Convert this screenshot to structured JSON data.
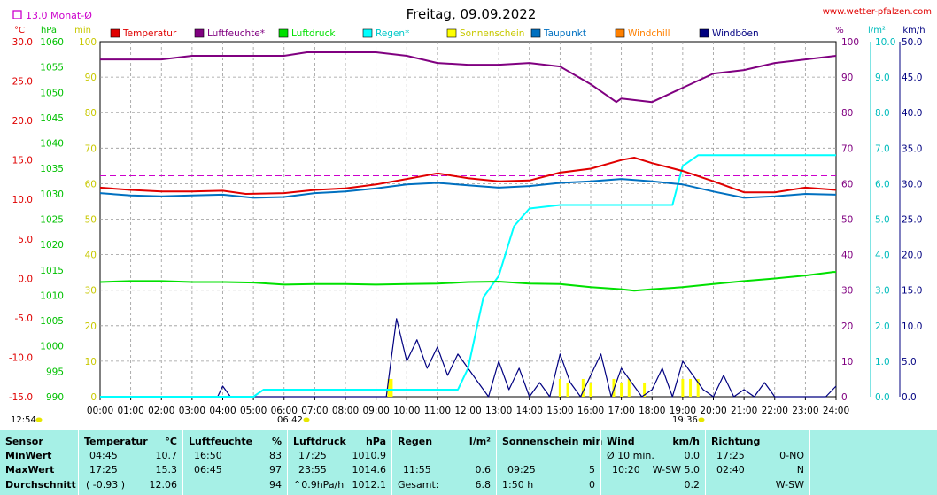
{
  "header": {
    "title": "Freitag, 09.09.2022",
    "site": "www.wetter-pfalzen.com",
    "month_marker": "13.0 Monat-Ø"
  },
  "axes": {
    "temp": {
      "unit": "°C",
      "ticks": [
        "30.0",
        "25.0",
        "20.0",
        "15.0",
        "10.0",
        "5.0",
        "0.0",
        "-5.0",
        "-10.0",
        "-15.0"
      ]
    },
    "pressure": {
      "unit": "hPa",
      "ticks": [
        "1060",
        "1055",
        "1050",
        "1045",
        "1040",
        "1035",
        "1030",
        "1025",
        "1020",
        "1015",
        "1010",
        "1005",
        "1000",
        "995",
        "990"
      ]
    },
    "sun": {
      "unit": "min",
      "ticks": [
        "100",
        "90",
        "80",
        "70",
        "60",
        "50",
        "40",
        "30",
        "20",
        "10",
        "0"
      ]
    },
    "humidity": {
      "unit": "%",
      "ticks": [
        "100",
        "90",
        "80",
        "70",
        "60",
        "50",
        "40",
        "30",
        "20",
        "10",
        "0"
      ]
    },
    "rain": {
      "unit": "l/m²",
      "ticks": [
        "10.0",
        "9.0",
        "8.0",
        "7.0",
        "6.0",
        "5.0",
        "4.0",
        "3.0",
        "2.0",
        "1.0",
        "0.0"
      ]
    },
    "wind": {
      "unit": "km/h",
      "ticks": [
        "50.0",
        "45.0",
        "40.0",
        "35.0",
        "30.0",
        "25.0",
        "20.0",
        "15.0",
        "10.0",
        "5.0",
        "0.0"
      ]
    },
    "x_ticks": [
      "00:00",
      "01:00",
      "02:00",
      "03:00",
      "04:00",
      "05:00",
      "06:00",
      "07:00",
      "08:00",
      "09:00",
      "10:00",
      "11:00",
      "12:00",
      "13:00",
      "14:00",
      "15:00",
      "16:00",
      "17:00",
      "18:00",
      "19:00",
      "20:00",
      "21:00",
      "22:00",
      "23:00",
      "24:00"
    ]
  },
  "legend": [
    {
      "label": "Temperatur",
      "color": "#e00000"
    },
    {
      "label": "Luftfeuchte*",
      "color": "#800080"
    },
    {
      "label": "Luftdruck",
      "color": "#00e000"
    },
    {
      "label": "Regen*",
      "color": "#00ffff"
    },
    {
      "label": "Sonnenschein",
      "color": "#ffff00"
    },
    {
      "label": "Taupunkt",
      "color": "#0070c0"
    },
    {
      "label": "Windchill",
      "color": "#ff8000"
    },
    {
      "label": "Windböen",
      "color": "#000080"
    }
  ],
  "sun_times": {
    "rise": "06:42",
    "set": "19:36",
    "moonrise": "12:54"
  },
  "chart_data": {
    "type": "line",
    "x_range": [
      "00:00",
      "24:00"
    ],
    "reference_lines": [
      {
        "name": "13.0 Monat-Ø",
        "axis": "temp",
        "value": 13.0
      }
    ],
    "series": [
      {
        "name": "Temperatur",
        "axis": "temp",
        "unit": "°C",
        "x": [
          "00:00",
          "01:00",
          "02:00",
          "03:00",
          "04:00",
          "04:45",
          "06:00",
          "07:00",
          "08:00",
          "09:00",
          "10:00",
          "11:00",
          "12:00",
          "13:00",
          "14:00",
          "15:00",
          "16:00",
          "17:00",
          "17:25",
          "18:00",
          "19:00",
          "20:00",
          "21:00",
          "22:00",
          "23:00",
          "24:00"
        ],
        "y": [
          11.5,
          11.2,
          11.0,
          11.0,
          11.1,
          10.7,
          10.8,
          11.2,
          11.4,
          11.9,
          12.6,
          13.3,
          12.7,
          12.3,
          12.4,
          13.4,
          13.9,
          15.0,
          15.3,
          14.6,
          13.6,
          12.3,
          10.9,
          10.9,
          11.5,
          11.2
        ]
      },
      {
        "name": "Taupunkt",
        "axis": "temp",
        "unit": "°C",
        "x": [
          "00:00",
          "01:00",
          "02:00",
          "03:00",
          "04:00",
          "05:00",
          "06:00",
          "07:00",
          "08:00",
          "09:00",
          "10:00",
          "11:00",
          "12:00",
          "13:00",
          "14:00",
          "15:00",
          "16:00",
          "17:00",
          "18:00",
          "19:00",
          "20:00",
          "21:00",
          "22:00",
          "23:00",
          "24:00"
        ],
        "y": [
          10.8,
          10.5,
          10.4,
          10.5,
          10.6,
          10.2,
          10.3,
          10.8,
          11.0,
          11.4,
          11.9,
          12.1,
          11.8,
          11.5,
          11.7,
          12.1,
          12.3,
          12.6,
          12.3,
          11.9,
          11.0,
          10.2,
          10.4,
          10.7,
          10.6
        ]
      },
      {
        "name": "Luftfeuchte*",
        "axis": "humidity",
        "unit": "%",
        "x": [
          "00:00",
          "02:00",
          "03:00",
          "04:00",
          "05:00",
          "06:00",
          "06:45",
          "07:00",
          "08:00",
          "09:00",
          "10:00",
          "11:00",
          "12:00",
          "13:00",
          "14:00",
          "15:00",
          "16:00",
          "16:50",
          "17:00",
          "18:00",
          "19:00",
          "20:00",
          "21:00",
          "22:00",
          "23:00",
          "24:00"
        ],
        "y": [
          95,
          95,
          96,
          96,
          96,
          96,
          97,
          97,
          97,
          97,
          96,
          94,
          93.5,
          93.5,
          94,
          93,
          88,
          83,
          84,
          83,
          87,
          91,
          92,
          94,
          95,
          96
        ]
      },
      {
        "name": "Luftdruck",
        "axis": "pressure",
        "unit": "hPa",
        "x": [
          "00:00",
          "01:00",
          "02:00",
          "03:00",
          "04:00",
          "05:00",
          "06:00",
          "07:00",
          "08:00",
          "09:00",
          "10:00",
          "11:00",
          "12:00",
          "13:00",
          "14:00",
          "15:00",
          "16:00",
          "17:00",
          "17:25",
          "18:00",
          "19:00",
          "20:00",
          "21:00",
          "22:00",
          "23:00",
          "23:55",
          "24:00"
        ],
        "y": [
          1012.6,
          1012.8,
          1012.8,
          1012.6,
          1012.6,
          1012.5,
          1012.1,
          1012.2,
          1012.2,
          1012.1,
          1012.2,
          1012.3,
          1012.6,
          1012.7,
          1012.3,
          1012.2,
          1011.6,
          1011.2,
          1010.9,
          1011.2,
          1011.6,
          1012.2,
          1012.8,
          1013.3,
          1013.9,
          1014.6,
          1014.6
        ]
      },
      {
        "name": "Regen*",
        "axis": "rain",
        "unit": "l/m²",
        "x": [
          "00:00",
          "05:00",
          "05:20",
          "06:00",
          "09:00",
          "11:40",
          "12:00",
          "12:30",
          "13:00",
          "13:30",
          "14:00",
          "15:00",
          "16:00",
          "18:00",
          "18:40",
          "19:00",
          "19:30",
          "20:00",
          "22:00",
          "24:00"
        ],
        "y": [
          0.0,
          0.0,
          0.2,
          0.2,
          0.2,
          0.2,
          0.8,
          2.8,
          3.4,
          4.8,
          5.3,
          5.4,
          5.4,
          5.4,
          5.4,
          6.5,
          6.8,
          6.8,
          6.8,
          6.8
        ]
      },
      {
        "name": "Windböen",
        "axis": "wind",
        "unit": "km/h",
        "x": [
          "00:00",
          "03:50",
          "04:00",
          "04:15",
          "09:20",
          "09:40",
          "10:00",
          "10:20",
          "10:40",
          "11:00",
          "11:20",
          "11:40",
          "12:00",
          "12:20",
          "12:40",
          "13:00",
          "13:20",
          "13:40",
          "14:00",
          "14:20",
          "14:40",
          "15:00",
          "15:20",
          "15:40",
          "16:00",
          "16:20",
          "16:40",
          "17:00",
          "17:20",
          "17:40",
          "18:00",
          "18:20",
          "18:40",
          "19:00",
          "19:20",
          "19:40",
          "20:00",
          "20:20",
          "20:40",
          "21:00",
          "21:20",
          "21:40",
          "22:00",
          "23:40",
          "24:00"
        ],
        "y": [
          0,
          0,
          1.5,
          0,
          0,
          11,
          5,
          8,
          4,
          7,
          3,
          6,
          4,
          2,
          0,
          5,
          1,
          4,
          0,
          2,
          0,
          6,
          2,
          0,
          3,
          6,
          0,
          4,
          2,
          0,
          1,
          4,
          0,
          5,
          3,
          1,
          0,
          3,
          0,
          1,
          0,
          2,
          0,
          0,
          1.5
        ]
      },
      {
        "name": "Sonnenschein",
        "axis": "sun",
        "unit": "min",
        "x": [
          "09:25",
          "09:30",
          "15:00",
          "15:15",
          "15:45",
          "16:00",
          "16:45",
          "17:00",
          "17:15",
          "17:45",
          "19:00",
          "19:15",
          "19:30"
        ],
        "y": [
          5,
          5,
          5,
          4,
          5,
          4,
          5,
          4,
          5,
          4,
          5,
          5,
          5
        ]
      }
    ]
  },
  "stats": {
    "headers": {
      "sensor": "Sensor",
      "temp": "Temperatur",
      "temp_unit": "°C",
      "hum": "Luftfeuchte",
      "hum_unit": "%",
      "press": "Luftdruck",
      "press_unit": "hPa",
      "rain": "Regen",
      "rain_unit": "l/m²",
      "sun": "Sonnenschein min",
      "wind": "Wind",
      "wind_unit": "km/h",
      "dir": "Richtung"
    },
    "rows": [
      {
        "label": "MinWert",
        "temp_time": "04:45",
        "temp_val": "10.7",
        "hum_time": "16:50",
        "hum_val": "83",
        "press_time": "17:25",
        "press_val": "1010.9",
        "rain_time": "",
        "rain_val": "",
        "sun_time": "",
        "sun_val": "",
        "wind_time": "Ø 10 min.",
        "wind_val": "0.0",
        "dir_time": "17:25",
        "dir_val": "0-NO"
      },
      {
        "label": "MaxWert",
        "temp_time": "17:25",
        "temp_val": "15.3",
        "hum_time": "06:45",
        "hum_val": "97",
        "press_time": "23:55",
        "press_val": "1014.6",
        "rain_time": "11:55",
        "rain_val": "0.6",
        "sun_time": "09:25",
        "sun_val": "5",
        "wind_time": "10:20",
        "wind_val": "W-SW 5.0",
        "dir_time": "02:40",
        "dir_val": "N"
      },
      {
        "label": "Durchschnitt",
        "temp_time": "( -0.93 )",
        "temp_val": "12.06",
        "hum_time": "",
        "hum_val": "94",
        "press_time": "^0.9hPa/h",
        "press_val": "1012.1",
        "rain_time": "Gesamt:",
        "rain_val": "6.8",
        "sun_time": "1:50 h",
        "sun_val": "0",
        "wind_time": "",
        "wind_val": "0.2",
        "dir_time": "",
        "dir_val": "W-SW"
      }
    ]
  }
}
